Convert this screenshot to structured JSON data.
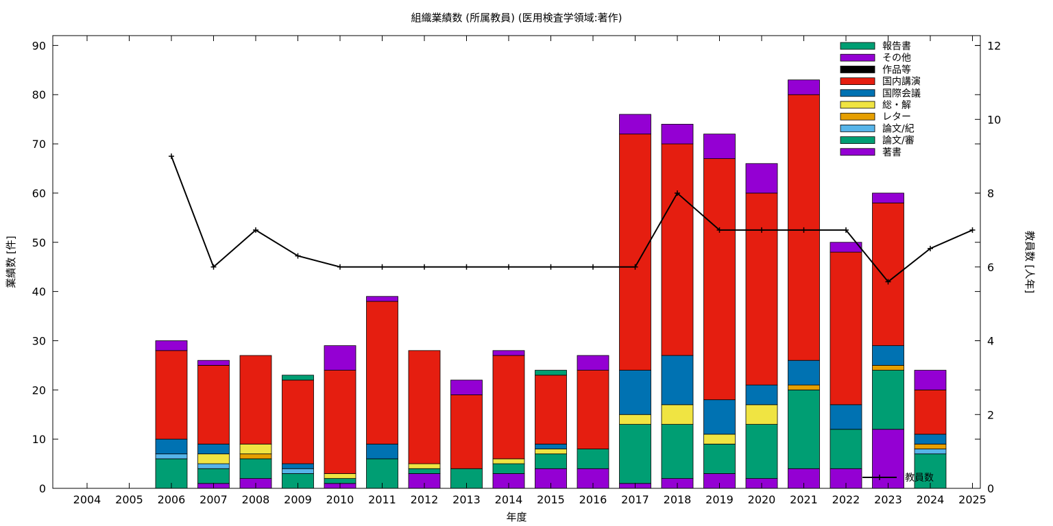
{
  "chart_data": {
    "type": "bar",
    "stacked": true,
    "title": "組織業績数 (所属教員) (医用検査学領域:著作)",
    "xlabel": "年度",
    "ylabel": "業績数 [件]",
    "y2label": "教員数 [人年]",
    "ylim": [
      0,
      92
    ],
    "y2lim": [
      0,
      12.27
    ],
    "yticks": [
      0,
      10,
      20,
      30,
      40,
      50,
      60,
      70,
      80,
      90
    ],
    "y2ticks": [
      0,
      2,
      4,
      6,
      8,
      10,
      12
    ],
    "legend_position": "top-right",
    "grid": false,
    "categories": [
      "2004",
      "2005",
      "2006",
      "2007",
      "2008",
      "2009",
      "2010",
      "2011",
      "2012",
      "2013",
      "2014",
      "2015",
      "2016",
      "2017",
      "2018",
      "2019",
      "2020",
      "2021",
      "2022",
      "2023",
      "2024",
      "2025"
    ],
    "series": [
      {
        "name": "著書",
        "color": "#9400d3",
        "values": [
          0,
          0,
          0,
          1,
          2,
          0,
          1,
          0,
          3,
          0,
          3,
          4,
          4,
          1,
          2,
          3,
          2,
          4,
          4,
          12,
          0,
          0
        ]
      },
      {
        "name": "論文/審",
        "color": "#009e73",
        "values": [
          0,
          0,
          6,
          3,
          4,
          3,
          1,
          6,
          1,
          4,
          2,
          3,
          4,
          12,
          11,
          6,
          11,
          16,
          8,
          12,
          7,
          0
        ]
      },
      {
        "name": "論文/紀",
        "color": "#56b4e9",
        "values": [
          0,
          0,
          1,
          1,
          0,
          1,
          0,
          0,
          0,
          0,
          0,
          0,
          0,
          0,
          0,
          0,
          0,
          0,
          0,
          0,
          1,
          0
        ]
      },
      {
        "name": "レター",
        "color": "#e69f00",
        "values": [
          0,
          0,
          0,
          0,
          1,
          0,
          0,
          0,
          0,
          0,
          0,
          0,
          0,
          0,
          0,
          0,
          0,
          1,
          0,
          1,
          1,
          0
        ]
      },
      {
        "name": "総・解",
        "color": "#f0e442",
        "values": [
          0,
          0,
          0,
          2,
          2,
          0,
          1,
          0,
          1,
          0,
          1,
          1,
          0,
          2,
          4,
          2,
          4,
          0,
          0,
          0,
          0,
          0
        ]
      },
      {
        "name": "国際会議",
        "color": "#0072b2",
        "values": [
          0,
          0,
          3,
          2,
          0,
          1,
          0,
          3,
          0,
          0,
          0,
          1,
          0,
          9,
          10,
          7,
          4,
          5,
          5,
          4,
          2,
          0
        ]
      },
      {
        "name": "国内講演",
        "color": "#e51e10",
        "values": [
          0,
          0,
          18,
          16,
          18,
          17,
          21,
          29,
          23,
          15,
          21,
          14,
          16,
          48,
          43,
          49,
          39,
          54,
          31,
          29,
          9,
          0
        ]
      },
      {
        "name": "作品等",
        "color": "#000000",
        "values": [
          0,
          0,
          0,
          0,
          0,
          0,
          0,
          0,
          0,
          0,
          0,
          0,
          0,
          0,
          0,
          0,
          0,
          0,
          0,
          0,
          0,
          0
        ]
      },
      {
        "name": "その他",
        "color": "#9400d3",
        "values": [
          0,
          0,
          2,
          1,
          0,
          0,
          5,
          1,
          0,
          3,
          1,
          0,
          3,
          4,
          4,
          5,
          6,
          3,
          2,
          2,
          4,
          0
        ]
      },
      {
        "name": "報告書",
        "color": "#009e73",
        "values": [
          0,
          0,
          0,
          0,
          0,
          1,
          0,
          0,
          0,
          0,
          0,
          1,
          0,
          0,
          0,
          0,
          0,
          0,
          0,
          0,
          0,
          0
        ]
      }
    ],
    "line": {
      "name": "教員数",
      "color": "#000000",
      "x": [
        "2006",
        "2007",
        "2008",
        "2009",
        "2010",
        "2011",
        "2012",
        "2013",
        "2014",
        "2015",
        "2016",
        "2017",
        "2018",
        "2019",
        "2020",
        "2021",
        "2022",
        "2023",
        "2024",
        "2025"
      ],
      "values": [
        9.0,
        6.0,
        7.0,
        6.3,
        6.0,
        6.0,
        6.0,
        6.0,
        6.0,
        6.0,
        6.0,
        6.0,
        8.0,
        7.0,
        7.0,
        7.0,
        7.0,
        5.6,
        6.5,
        7.0
      ]
    }
  }
}
